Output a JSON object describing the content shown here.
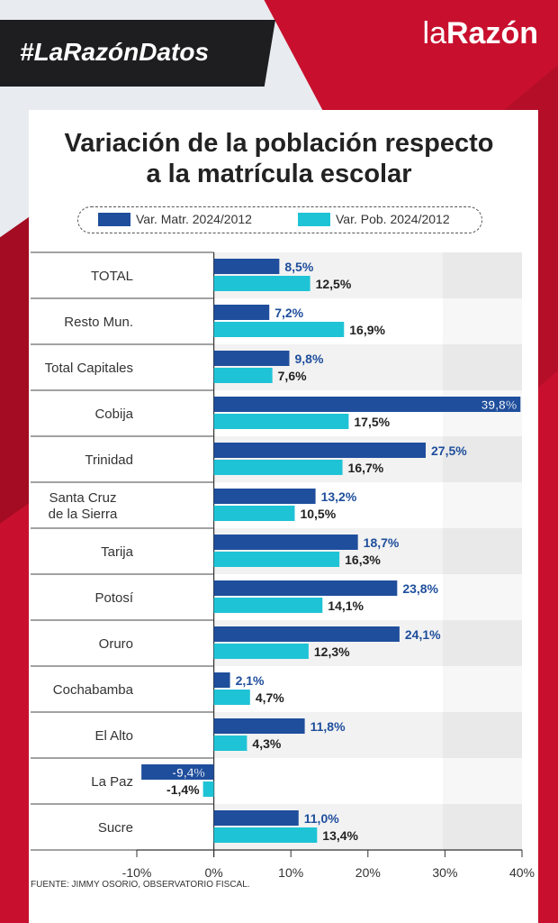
{
  "hashtag": "#LaRazónDatos",
  "logo": {
    "part1": "la",
    "part2": "Razón"
  },
  "title_line1": "Variación de la población respecto",
  "title_line2": "a la matrícula escolar",
  "source": "FUENTE: JIMMY OSORIO, OBSERVATORIO FISCAL.",
  "colors": {
    "matr": "#1f4e9c",
    "pob": "#1fc3d6",
    "matr_label": "#1f4e9c",
    "pob_label": "#222222"
  },
  "chart_data": {
    "type": "bar",
    "orientation": "horizontal",
    "title": "Variación de la población respecto a la matrícula escolar",
    "categories": [
      "TOTAL",
      "Resto Mun.",
      "Total Capitales",
      "Cobija",
      "Trinidad",
      "Santa Cruz de la Sierra",
      "Tarija",
      "Potosí",
      "Oruro",
      "Cochabamba",
      "El Alto",
      "La Paz",
      "Sucre"
    ],
    "series": [
      {
        "name": "Var. Matr. 2024/2012",
        "values": [
          8.5,
          7.2,
          9.8,
          39.8,
          27.5,
          13.2,
          18.7,
          23.8,
          24.1,
          2.1,
          11.8,
          -9.4,
          11.0
        ],
        "labels": [
          "8,5%",
          "7,2%",
          "9,8%",
          "39,8%",
          "27,5%",
          "13,2%",
          "18,7%",
          "23,8%",
          "24,1%",
          "2,1%",
          "11,8%",
          "-9,4%",
          "11,0%"
        ]
      },
      {
        "name": "Var. Pob. 2024/2012",
        "values": [
          12.5,
          16.9,
          7.6,
          17.5,
          16.7,
          10.5,
          16.3,
          14.1,
          12.3,
          4.7,
          4.3,
          -1.4,
          13.4
        ],
        "labels": [
          "12,5%",
          "16,9%",
          "7,6%",
          "17,5%",
          "16,7%",
          "10,5%",
          "16,3%",
          "14,1%",
          "12,3%",
          "4,7%",
          "4,3%",
          "-1,4%",
          "13,4%"
        ]
      }
    ],
    "xlim": [
      -10,
      40
    ],
    "xticks": [
      "-10%",
      "0%",
      "10%",
      "20%",
      "30%",
      "40%"
    ],
    "legend": "top"
  }
}
